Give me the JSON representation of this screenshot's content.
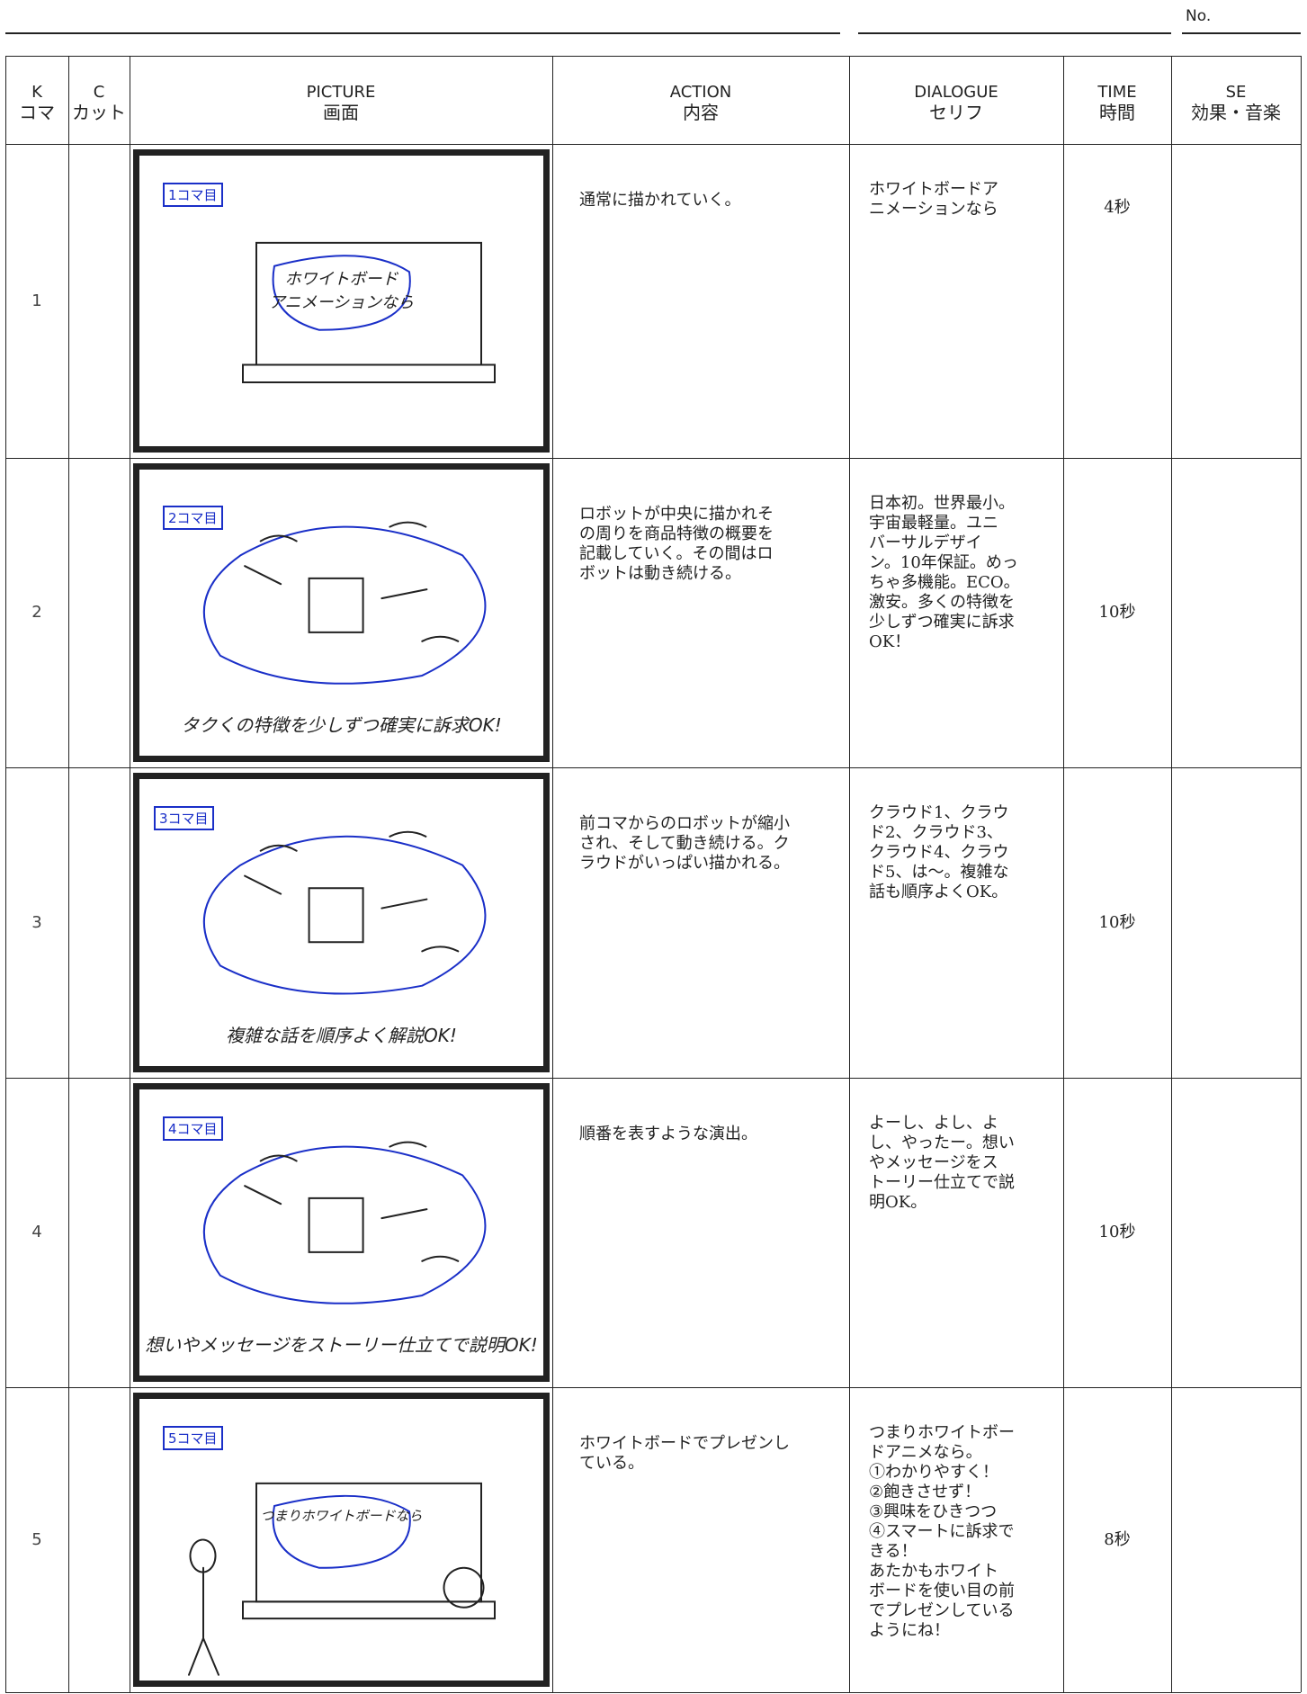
{
  "header": {
    "no": "No."
  },
  "columns": [
    {
      "en": "K",
      "ja": "コマ"
    },
    {
      "en": "C",
      "ja": "カット"
    },
    {
      "en": "PICTURE",
      "ja": "画面"
    },
    {
      "en": "ACTION",
      "ja": "内容"
    },
    {
      "en": "DIALOGUE",
      "ja": "セリフ"
    },
    {
      "en": "TIME",
      "ja": "時間"
    },
    {
      "en": "SE",
      "ja": "効果・音楽"
    }
  ],
  "rows": [
    {
      "k": "1",
      "picture": {
        "label": "1コマ目",
        "caption": "ホワイトボード\nアニメーションなら"
      },
      "action": "通常に描かれていく。",
      "dialogue": "ホワイトボードア\nニメーションなら",
      "time": "4秒"
    },
    {
      "k": "2",
      "picture": {
        "label": "2コマ目",
        "caption": "タクくの特徴を少しずつ確実に訴求OK!"
      },
      "action": "ロボットが中央に描かれそ\nの周りを商品特徴の概要を\n記載していく。その間はロ\nボットは動き続ける。",
      "dialogue": "日本初。世界最小。\n宇宙最軽量。ユニ\nバーサルデザイ\nン。10年保証。めっ\nちゃ多機能。ECO。\n激安。多くの特徴を\n少しずつ確実に訴求\nOK！",
      "time": "10秒"
    },
    {
      "k": "3",
      "picture": {
        "label": "3コマ目",
        "caption": "複雑な話を順序よく解説OK!"
      },
      "action": "前コマからのロボットが縮小\nされ、そして動き続ける。ク\nラウドがいっぱい描かれる。",
      "dialogue": "クラウド1、クラウ\nド2、クラウド3、\nクラウド4、クラウ\nド5、は～。複雑な\n話も順序よくOK。",
      "time": "10秒"
    },
    {
      "k": "4",
      "picture": {
        "label": "4コマ目",
        "caption": "想いやメッセージをストーリー仕立てで説明OK!"
      },
      "action": "順番を表すような演出。",
      "dialogue": "よーし、よし、よ\nし、やったー。想い\nやメッセージをス\nトーリー仕立てで説\n明OK。",
      "time": "10秒"
    },
    {
      "k": "5",
      "picture": {
        "label": "5コマ目",
        "caption": "つまりホワイトボードなら"
      },
      "action": "ホワイトボードでプレゼンし\nている。",
      "dialogue": "つまりホワイトボー\nドアニメなら。\n①わかりやすく！\n②飽きさせず！\n③興味をひきつつ\n④スマートに訴求で\nきる！\nあたかもホワイト\nボードを使い目の前\nでプレゼンしている\nようにね！",
      "time": "8秒"
    }
  ]
}
